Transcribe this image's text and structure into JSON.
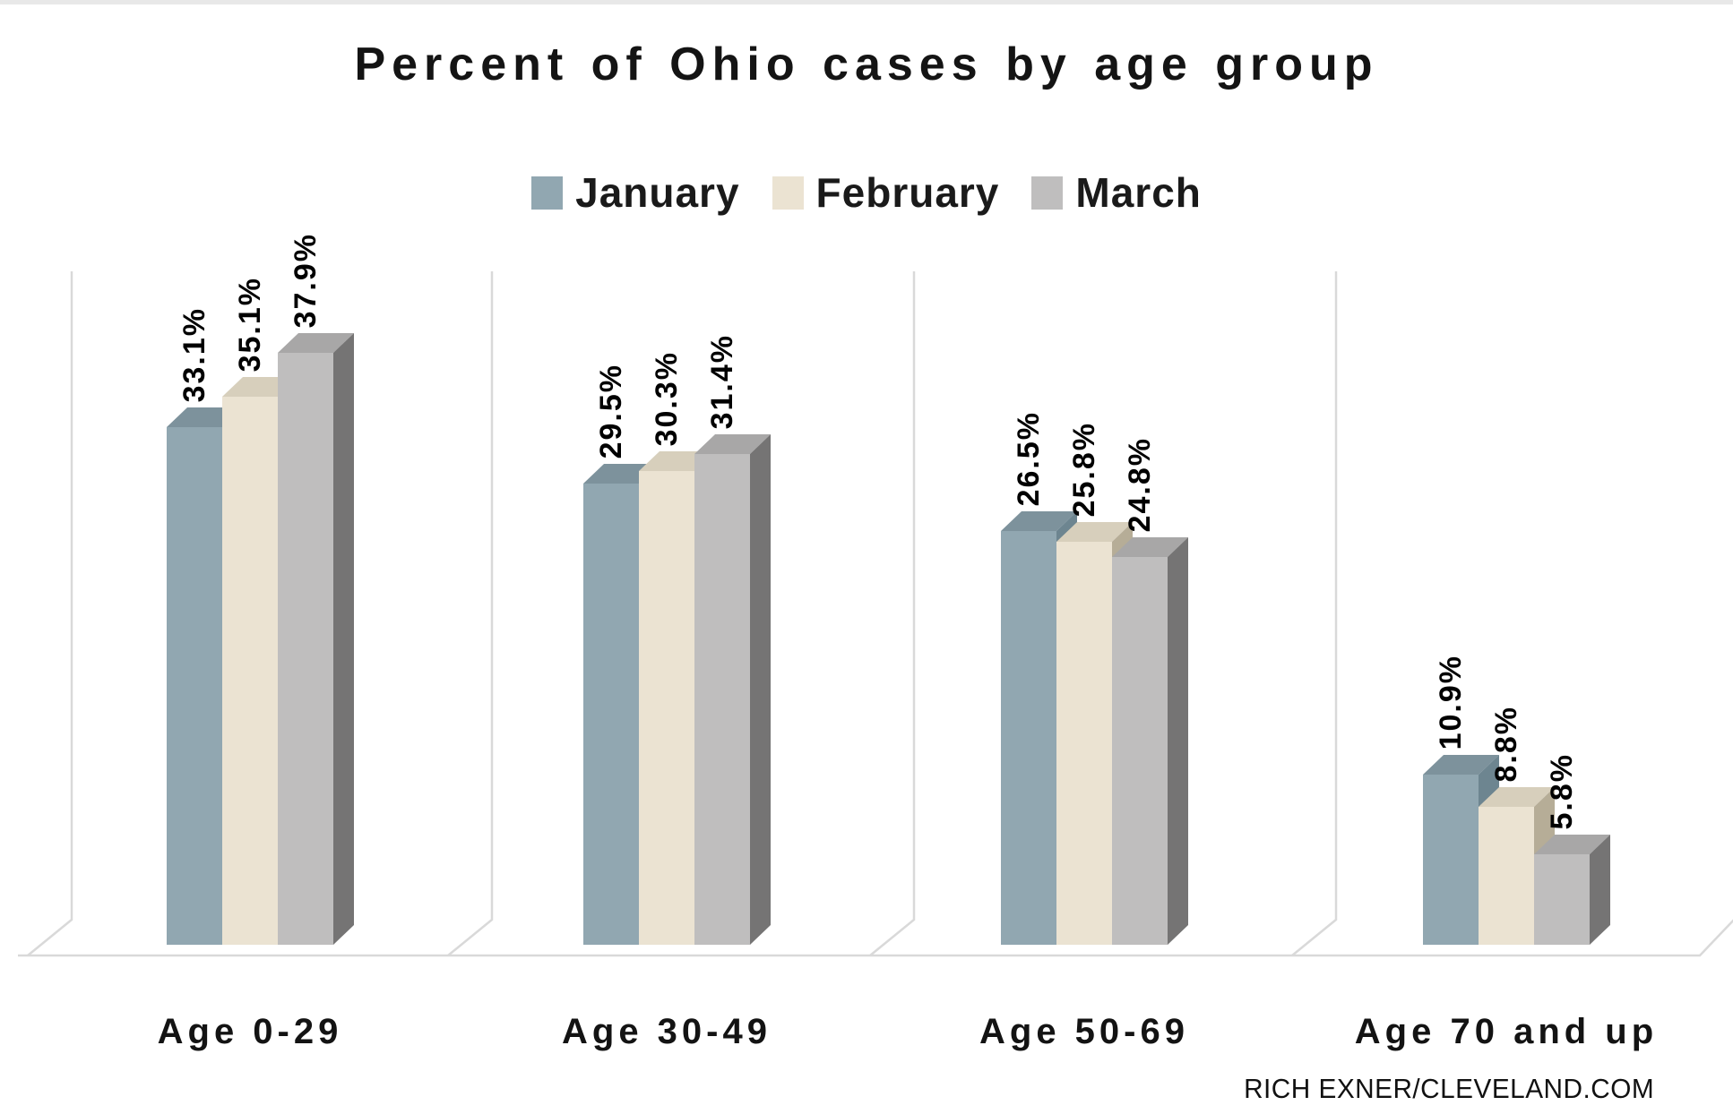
{
  "title": "Percent of Ohio cases by age group",
  "credit": "RICH EXNER/CLEVELAND.COM",
  "chart_data": {
    "type": "bar",
    "title": "Percent of Ohio cases by age group",
    "categories": [
      "Age 0-29",
      "Age 30-49",
      "Age 50-69",
      "Age 70 and up"
    ],
    "series": [
      {
        "name": "January",
        "values": [
          33.1,
          29.5,
          26.5,
          10.9
        ],
        "color_front": "#91a7b1",
        "color_top": "#7d929c",
        "color_side": "#6d8590"
      },
      {
        "name": "February",
        "values": [
          35.1,
          30.3,
          25.8,
          8.8
        ],
        "color_front": "#ebe3d2",
        "color_top": "#d7cfbc",
        "color_side": "#b6ad97"
      },
      {
        "name": "March",
        "values": [
          37.9,
          31.4,
          24.8,
          5.8
        ],
        "color_front": "#bfbebe",
        "color_top": "#a8a7a7",
        "color_side": "#757474"
      }
    ],
    "value_suffix": "%",
    "value_decimals": 1,
    "data_labels": "rotated 90deg above each bar",
    "xlabel": "",
    "ylabel": "",
    "ylim": [
      0,
      40
    ],
    "legend_position": "top-center",
    "grid": "vertical category separators on 3D back wall, no y-axis ticks",
    "style_3d": true,
    "background_color": "#ffffff",
    "line_color": "#d7d7d7"
  }
}
